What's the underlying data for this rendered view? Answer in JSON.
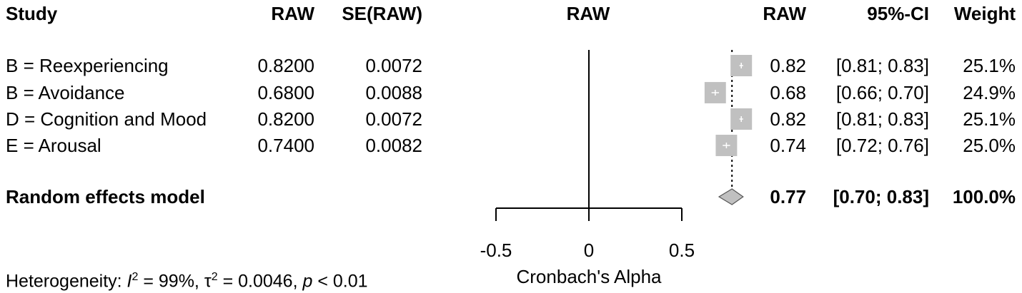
{
  "headers": {
    "study": "Study",
    "raw": "RAW",
    "se_raw": "SE(RAW)",
    "plot_raw": "RAW",
    "raw_right": "RAW",
    "ci": "95%-CI",
    "weight": "Weight"
  },
  "studies": [
    {
      "name": "B = Reexperiencing",
      "raw": "0.8200",
      "se": "0.0072",
      "est": "0.82",
      "ci": "[0.81; 0.83]",
      "weight": "25.1%"
    },
    {
      "name": "B = Avoidance",
      "raw": "0.6800",
      "se": "0.0088",
      "est": "0.68",
      "ci": "[0.66; 0.70]",
      "weight": "24.9%"
    },
    {
      "name": "D = Cognition and Mood",
      "raw": "0.8200",
      "se": "0.0072",
      "est": "0.82",
      "ci": "[0.81; 0.83]",
      "weight": "25.1%"
    },
    {
      "name": "E = Arousal",
      "raw": "0.7400",
      "se": "0.0082",
      "est": "0.74",
      "ci": "[0.72; 0.76]",
      "weight": "25.0%"
    }
  ],
  "pooled": {
    "name": "Random effects model",
    "est": "0.77",
    "ci": "[0.70; 0.83]",
    "weight": "100.0%"
  },
  "heterogeneity": {
    "prefix": "Heterogeneity: ",
    "i2_sym": "I",
    "i2_sup": "2",
    "i2_val": " = 99%, ",
    "tau_sym": "τ",
    "tau_sup": "2",
    "tau_val": " = 0.0046, ",
    "p_sym": "p",
    "p_val": " < 0.01"
  },
  "colors": {
    "square": "#c0c0c0",
    "diamond": "#c0c0c0",
    "line": "#000000"
  },
  "chart_data": {
    "type": "forest",
    "xlabel": "Cronbach's Alpha",
    "xlim": [
      -0.5,
      0.5
    ],
    "ticks": [
      -0.5,
      0,
      0.5
    ],
    "tick_labels": [
      "-0.5",
      "0",
      "0.5"
    ],
    "reference_line": 0,
    "pooled_line": 0.77,
    "series": [
      {
        "study": "B = Reexperiencing",
        "est": 0.82,
        "lower": 0.81,
        "upper": 0.83,
        "weight": 25.1
      },
      {
        "study": "B = Avoidance",
        "est": 0.68,
        "lower": 0.66,
        "upper": 0.7,
        "weight": 24.9
      },
      {
        "study": "D = Cognition and Mood",
        "est": 0.82,
        "lower": 0.81,
        "upper": 0.83,
        "weight": 25.1
      },
      {
        "study": "E = Arousal",
        "est": 0.74,
        "lower": 0.72,
        "upper": 0.76,
        "weight": 25.0
      }
    ],
    "pooled": {
      "est": 0.77,
      "lower": 0.7,
      "upper": 0.83,
      "weight": 100.0
    }
  }
}
